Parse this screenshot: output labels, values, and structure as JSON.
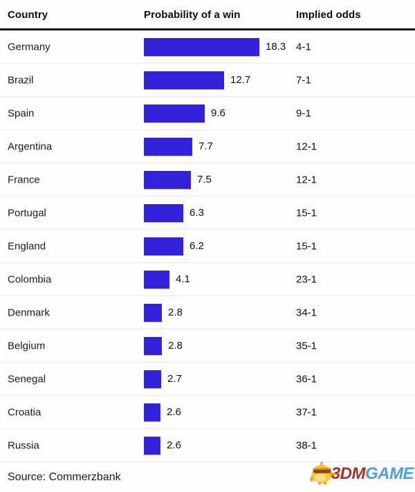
{
  "header": {
    "country": "Country",
    "probability": "Probability of a win",
    "odds": "Implied odds"
  },
  "chart_data": {
    "type": "bar",
    "orientation": "horizontal",
    "title": "Probability of a win",
    "categories": [
      "Germany",
      "Brazil",
      "Spain",
      "Argentina",
      "France",
      "Portugal",
      "England",
      "Colombia",
      "Denmark",
      "Belgium",
      "Senegal",
      "Croatia",
      "Russia"
    ],
    "values": [
      18.3,
      12.7,
      9.6,
      7.7,
      7.5,
      6.3,
      6.2,
      4.1,
      2.8,
      2.8,
      2.7,
      2.6,
      2.6
    ],
    "implied_odds": [
      "4-1",
      "7-1",
      "9-1",
      "12-1",
      "12-1",
      "15-1",
      "15-1",
      "23-1",
      "34-1",
      "35-1",
      "36-1",
      "37-1",
      "38-1"
    ],
    "xlim": [
      0,
      18.3
    ],
    "bar_color": "#3423dc",
    "grid": false,
    "legend": false
  },
  "footer": {
    "source": "Source: Commerzbank"
  },
  "watermark": {
    "icon": "chick-mascot-icon",
    "brand_3dm": "3DM",
    "brand_game": "GAME",
    "color_3dm": "#a0342a",
    "color_game": "#4ba1d8"
  },
  "style": {
    "separator_color": "#e9e9e9",
    "header_rule_color": "#161616",
    "background": "#fefefe"
  }
}
